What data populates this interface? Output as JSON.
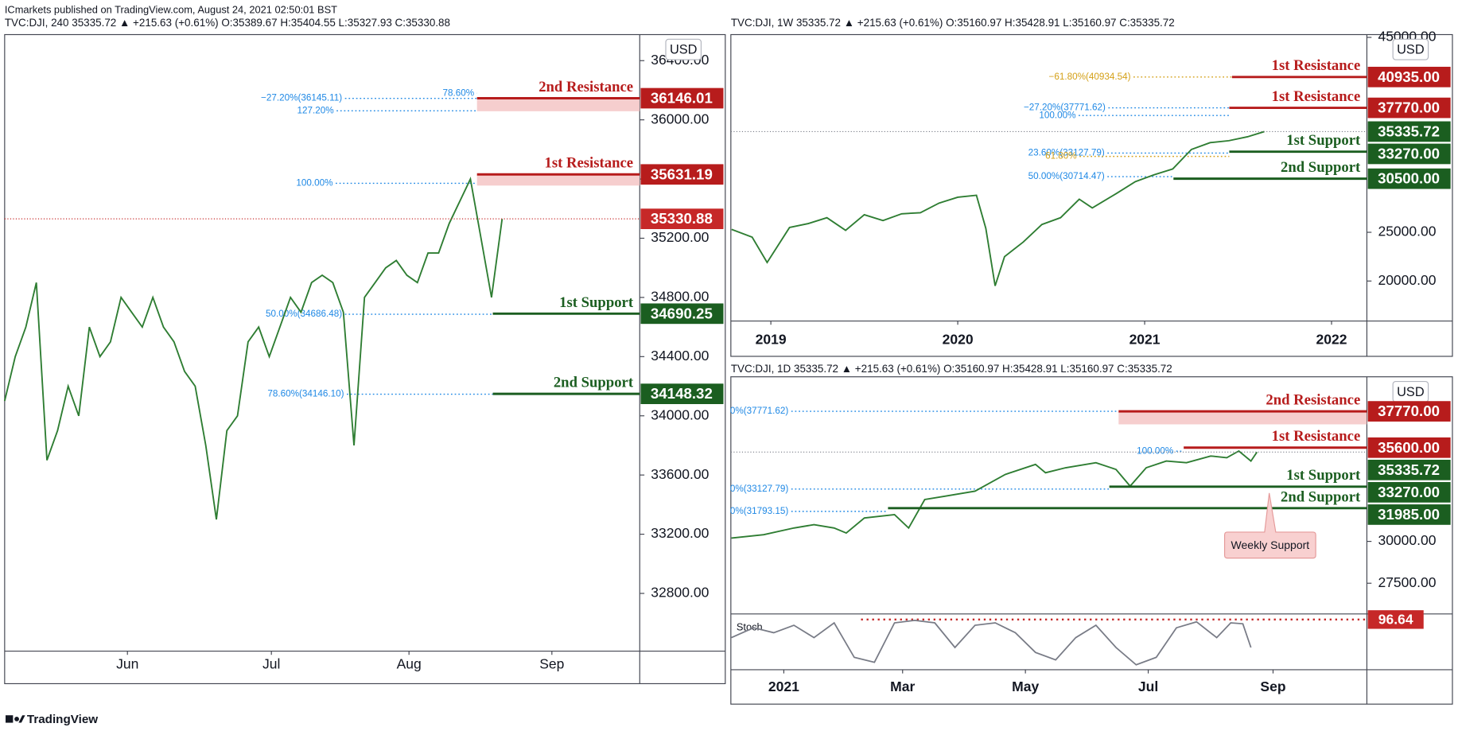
{
  "publisher": "ICmarkets published on TradingView.com, August 24, 2021 02:50:01 BST",
  "brand": "TradingView",
  "chart_data": [
    {
      "type": "line",
      "legend": "TVC:DJI, 240  35335.72 ▲ +215.63 (+0.61%) O:35389.67 H:35404.55 L:35327.93 C:35330.88",
      "currency": "USD",
      "color": "#2e7d32",
      "xlim": [
        0,
        60
      ],
      "xticks": [
        {
          "value": 11.6,
          "label": "Jun"
        },
        {
          "value": 25.2,
          "label": "Jul"
        },
        {
          "value": 38.2,
          "label": "Aug"
        },
        {
          "value": 51.7,
          "label": "Sep"
        }
      ],
      "ylim": [
        32410,
        36576
      ],
      "yticks": [
        {
          "value": 32800,
          "label": "32800.00"
        },
        {
          "value": 33200,
          "label": "33200.00"
        },
        {
          "value": 33600,
          "label": "33600.00"
        },
        {
          "value": 34000,
          "label": "34000.00"
        },
        {
          "value": 34400,
          "label": "34400.00"
        },
        {
          "value": 34800,
          "label": "34800.00"
        },
        {
          "value": 35200,
          "label": "35200.00"
        },
        {
          "value": 35600,
          "label": "35600.00"
        },
        {
          "value": 36000,
          "label": "36000.00"
        },
        {
          "value": 36400,
          "label": "36400.00"
        }
      ],
      "values": [
        34100,
        34400,
        34600,
        34900,
        33700,
        33900,
        34200,
        34000,
        34600,
        34400,
        34500,
        34800,
        34700,
        34600,
        34800,
        34600,
        34500,
        34300,
        34200,
        33800,
        33300,
        33900,
        34000,
        34500,
        34600,
        34400,
        34600,
        34800,
        34700,
        34900,
        34950,
        34900,
        34700,
        33800,
        34800,
        34900,
        35000,
        35050,
        34950,
        34900,
        35100,
        35100,
        35300,
        35450,
        35600,
        35200,
        34800,
        35330.88
      ],
      "levels": [
        {
          "name": "2nd Resistance",
          "value": 36146.01,
          "color": "#b71c1c"
        },
        {
          "name": "1st Resistance",
          "value": 35631.19,
          "color": "#b71c1c"
        },
        {
          "value": 35330.88,
          "color": "#c62828"
        },
        {
          "name": "1st Support",
          "value": 34690.25,
          "color": "#1b5e20"
        },
        {
          "name": "2nd Support",
          "value": 34148.32,
          "color": "#1b5e20"
        }
      ],
      "fibs": [
        {
          "label": "−27.20%(36145.11)",
          "value": 36145.11,
          "color": "#1e88e5"
        },
        {
          "label": "78.60%",
          "value": 36180,
          "color": "#1e88e5"
        },
        {
          "label": "127.20%",
          "value": 36061,
          "color": "#1e88e5"
        },
        {
          "label": "100.00%",
          "value": 35571,
          "color": "#1e88e5"
        },
        {
          "label": "50.00%(34686.48)",
          "value": 34686.48,
          "color": "#1e88e5"
        },
        {
          "label": "78.60%(34146.10)",
          "value": 34146.1,
          "color": "#1e88e5"
        }
      ]
    },
    {
      "type": "line",
      "legend": "TVC:DJI, 1W  35335.72 ▲ +215.63 (+0.61%) O:35160.97 H:35428.91 L:35160.97 C:35335.72",
      "currency": "USD",
      "color": "#2e7d32",
      "xlim": [
        2018.786,
        2022.189
      ],
      "xticks": [
        2019,
        2020,
        2021,
        2022
      ],
      "ylim": [
        15897,
        45286
      ],
      "yticks": [
        {
          "value": 20000,
          "label": "20000.00"
        },
        {
          "value": 25000,
          "label": "25000.00"
        },
        {
          "value": 45000,
          "label": "45000.00"
        }
      ],
      "x": [
        2018.79,
        2018.9,
        2018.98,
        2019.1,
        2019.2,
        2019.3,
        2019.4,
        2019.5,
        2019.6,
        2019.7,
        2019.8,
        2019.9,
        2020.0,
        2020.1,
        2020.15,
        2020.2,
        2020.25,
        2020.35,
        2020.45,
        2020.55,
        2020.65,
        2020.72,
        2020.85,
        2020.95,
        2021.05,
        2021.15,
        2021.25,
        2021.35,
        2021.45,
        2021.55,
        2021.64
      ],
      "values": [
        25300,
        24500,
        21900,
        25500,
        25900,
        26500,
        25200,
        26800,
        26200,
        26900,
        27000,
        28000,
        28600,
        28800,
        25400,
        19500,
        22500,
        24000,
        25800,
        26500,
        28400,
        27500,
        29000,
        30200,
        30900,
        31500,
        33500,
        34200,
        34400,
        34800,
        35335.72
      ],
      "levels": [
        {
          "name": "1st Resistance",
          "value": 40935,
          "value_label": "40935.00",
          "color": "#b71c1c"
        },
        {
          "name": "1st Resistance",
          "value": 37770,
          "value_label": "37770.00",
          "color": "#b71c1c"
        },
        {
          "value": 35335.72,
          "color": "#1b5e20"
        },
        {
          "name": "1st Support",
          "value": 33270,
          "value_label": "33270.00",
          "color": "#1b5e20"
        },
        {
          "name": "2nd Support",
          "value": 30500,
          "value_label": "30500.00",
          "color": "#1b5e20"
        }
      ],
      "fibs": [
        {
          "label": "−61.80%(40934.54)",
          "value": 40934.54,
          "color": "#d4a017"
        },
        {
          "label": "−27.20%(37771.62)",
          "value": 37771.62,
          "color": "#1e88e5"
        },
        {
          "label": "100.00%",
          "value": 36985,
          "color": "#1e88e5"
        },
        {
          "label": "23.60%(33127.79)",
          "value": 33127.79,
          "color": "#1e88e5"
        },
        {
          "label": "61.80%",
          "value": 32786,
          "color": "#d4a017"
        },
        {
          "label": "50.00%(30714.47)",
          "value": 30714.47,
          "color": "#1e88e5"
        }
      ]
    },
    {
      "type": "line",
      "legend": "TVC:DJI, 1D  35335.72 ▲ +215.63 (+0.61%) O:35160.97 H:35428.91 L:35160.97 C:35335.72",
      "currency": "USD",
      "color": "#2e7d32",
      "xlim": [
        -26.3,
        289.6
      ],
      "xticks": [
        {
          "value": 0,
          "label": "2021"
        },
        {
          "value": 59,
          "label": "Mar"
        },
        {
          "value": 120,
          "label": "May"
        },
        {
          "value": 181,
          "label": "Jul"
        },
        {
          "value": 243,
          "label": "Sep"
        }
      ],
      "ylim": [
        25667,
        39833
      ],
      "yticks": [
        {
          "value": 27500,
          "label": "27500.00"
        },
        {
          "value": 30000,
          "label": "30000.00"
        }
      ],
      "x": [
        -26,
        -10,
        5,
        15,
        25,
        31,
        40,
        55,
        62,
        70,
        80,
        95,
        110,
        125,
        130,
        140,
        155,
        165,
        172,
        180,
        190,
        200,
        212,
        220,
        226,
        232,
        235
      ],
      "values": [
        30200,
        30400,
        30800,
        31000,
        30800,
        30500,
        31400,
        31600,
        30800,
        32500,
        32700,
        33000,
        34000,
        34600,
        34100,
        34400,
        34700,
        34300,
        33300,
        34400,
        34800,
        34700,
        35100,
        35000,
        35400,
        34800,
        35335.72
      ],
      "levels": [
        {
          "name": "2nd Resistance",
          "value": 37770,
          "value_label": "37770.00",
          "color": "#b71c1c"
        },
        {
          "name": "1st Resistance",
          "value": 35600,
          "value_label": "35600.00",
          "color": "#b71c1c"
        },
        {
          "value": 35335.72,
          "color": "#1b5e20"
        },
        {
          "name": "1st Support",
          "value": 33270,
          "value_label": "33270.00",
          "color": "#1b5e20"
        },
        {
          "name": "2nd Support",
          "value": 31985,
          "value_label": "31985.00",
          "color": "#1b5e20"
        }
      ],
      "fibs": [
        {
          "label": "0%(37771.62)",
          "value": 37771.62,
          "color": "#1e88e5"
        },
        {
          "label": "100.00%",
          "value": 35389,
          "color": "#1e88e5"
        },
        {
          "label": "0%(33127.79)",
          "value": 33127.79,
          "color": "#1e88e5"
        },
        {
          "label": "0%(31793.15)",
          "value": 31793.15,
          "color": "#1e88e5"
        }
      ],
      "annotation": "Weekly Support",
      "stoch": {
        "title": "Stoch",
        "color": "#787b86",
        "ylim": [
          -5,
          108
        ],
        "level": 96.64,
        "level_color": "#c62828",
        "x": [
          -26,
          -15,
          -5,
          5,
          15,
          25,
          35,
          45,
          55,
          65,
          75,
          85,
          95,
          105,
          115,
          125,
          135,
          145,
          155,
          165,
          175,
          185,
          195,
          205,
          215,
          222,
          228,
          232
        ],
        "values": [
          60,
          80,
          70,
          85,
          60,
          90,
          20,
          10,
          90,
          95,
          90,
          40,
          85,
          90,
          70,
          30,
          15,
          60,
          85,
          40,
          5,
          20,
          80,
          92,
          60,
          90,
          88,
          40
        ]
      }
    }
  ]
}
